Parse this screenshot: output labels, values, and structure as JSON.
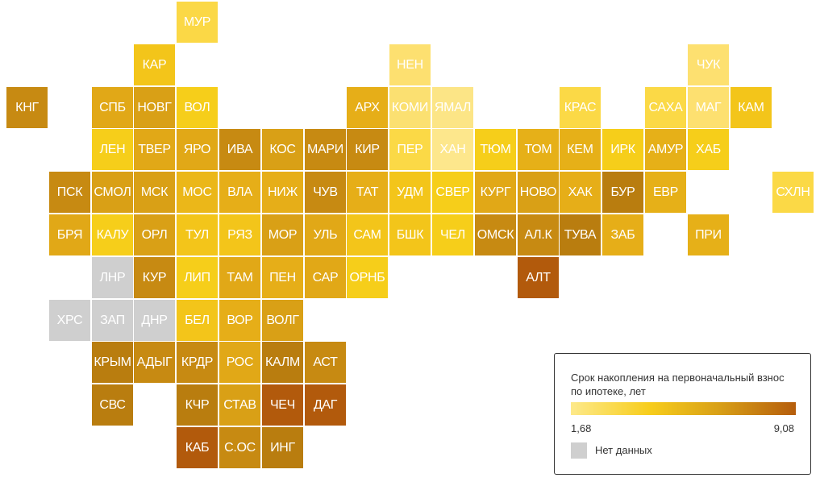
{
  "legend": {
    "title": "Срок накопления на первоначальный взнос по ипотеке, лет",
    "min_label": "1,68",
    "max_label": "9,08",
    "min_value": 1.68,
    "max_value": 9.08,
    "no_data_label": "Нет данных",
    "no_data_color": "#cfcfcf",
    "scale_colors": [
      "#fde98a",
      "#f7cd1c",
      "#d9a117",
      "#b55d0c"
    ]
  },
  "regions": [
    {
      "label": "МУР",
      "col": 4,
      "row": 0,
      "color": "#fbd846"
    },
    {
      "label": "КАР",
      "col": 3,
      "row": 1,
      "color": "#f3c51a"
    },
    {
      "label": "НЕН",
      "col": 9,
      "row": 1,
      "color": "#fde070"
    },
    {
      "label": "ЧУК",
      "col": 16,
      "row": 1,
      "color": "#fde070"
    },
    {
      "label": "КНГ",
      "col": 0,
      "row": 2,
      "color": "#c78a12"
    },
    {
      "label": "СПБ",
      "col": 2,
      "row": 2,
      "color": "#e1a817"
    },
    {
      "label": "НОВГ",
      "col": 3,
      "row": 2,
      "color": "#d9a016"
    },
    {
      "label": "ВОЛ",
      "col": 4,
      "row": 2,
      "color": "#f6ce1a"
    },
    {
      "label": "АРХ",
      "col": 8,
      "row": 2,
      "color": "#e6ae18"
    },
    {
      "label": "КОМИ",
      "col": 9,
      "row": 2,
      "color": "#fbe071"
    },
    {
      "label": "ЯМАЛ",
      "col": 10,
      "row": 2,
      "color": "#fce586"
    },
    {
      "label": "КРАС",
      "col": 13,
      "row": 2,
      "color": "#fbd946"
    },
    {
      "label": "САХА",
      "col": 15,
      "row": 2,
      "color": "#fbd946"
    },
    {
      "label": "МАГ",
      "col": 16,
      "row": 2,
      "color": "#fde070"
    },
    {
      "label": "КАМ",
      "col": 17,
      "row": 2,
      "color": "#f3c51a"
    },
    {
      "label": "ЛЕН",
      "col": 2,
      "row": 3,
      "color": "#f6ce1a"
    },
    {
      "label": "ТВЕР",
      "col": 3,
      "row": 3,
      "color": "#e1a817"
    },
    {
      "label": "ЯРО",
      "col": 4,
      "row": 3,
      "color": "#e1a817"
    },
    {
      "label": "ИВА",
      "col": 5,
      "row": 3,
      "color": "#c78a12"
    },
    {
      "label": "КОС",
      "col": 6,
      "row": 3,
      "color": "#d9a016"
    },
    {
      "label": "МАРИ",
      "col": 7,
      "row": 3,
      "color": "#c78a12"
    },
    {
      "label": "КИР",
      "col": 8,
      "row": 3,
      "color": "#c78a12"
    },
    {
      "label": "ПЕР",
      "col": 9,
      "row": 3,
      "color": "#fbd946"
    },
    {
      "label": "ХАН",
      "col": 10,
      "row": 3,
      "color": "#fde78c"
    },
    {
      "label": "ТЮМ",
      "col": 11,
      "row": 3,
      "color": "#f6ce1a"
    },
    {
      "label": "ТОМ",
      "col": 12,
      "row": 3,
      "color": "#e6b018"
    },
    {
      "label": "КЕМ",
      "col": 13,
      "row": 3,
      "color": "#e6b018"
    },
    {
      "label": "ИРК",
      "col": 14,
      "row": 3,
      "color": "#f6ce1a"
    },
    {
      "label": "АМУР",
      "col": 15,
      "row": 3,
      "color": "#e6b018"
    },
    {
      "label": "ХАБ",
      "col": 16,
      "row": 3,
      "color": "#f6ce1a"
    },
    {
      "label": "ПСК",
      "col": 1,
      "row": 4,
      "color": "#c78a12"
    },
    {
      "label": "СМОЛ",
      "col": 2,
      "row": 4,
      "color": "#d9a016"
    },
    {
      "label": "МСК",
      "col": 3,
      "row": 4,
      "color": "#d9a016"
    },
    {
      "label": "МОС",
      "col": 4,
      "row": 4,
      "color": "#ebb719"
    },
    {
      "label": "ВЛА",
      "col": 5,
      "row": 4,
      "color": "#e6ae18"
    },
    {
      "label": "НИЖ",
      "col": 6,
      "row": 4,
      "color": "#e6ae18"
    },
    {
      "label": "ЧУВ",
      "col": 7,
      "row": 4,
      "color": "#c78a12"
    },
    {
      "label": "ТАТ",
      "col": 8,
      "row": 4,
      "color": "#e6ae18"
    },
    {
      "label": "УДМ",
      "col": 9,
      "row": 4,
      "color": "#f3c51a"
    },
    {
      "label": "СВЕР",
      "col": 10,
      "row": 4,
      "color": "#f6ce1a"
    },
    {
      "label": "КУРГ",
      "col": 11,
      "row": 4,
      "color": "#e1a817"
    },
    {
      "label": "НОВО",
      "col": 12,
      "row": 4,
      "color": "#d9a016"
    },
    {
      "label": "ХАК",
      "col": 13,
      "row": 4,
      "color": "#e6ae18"
    },
    {
      "label": "БУР",
      "col": 14,
      "row": 4,
      "color": "#b97d0f"
    },
    {
      "label": "ЕВР",
      "col": 15,
      "row": 4,
      "color": "#e6b018"
    },
    {
      "label": "СХЛН",
      "col": 18,
      "row": 4,
      "color": "#fbd946"
    },
    {
      "label": "БРЯ",
      "col": 1,
      "row": 5,
      "color": "#e1a817"
    },
    {
      "label": "КАЛУ",
      "col": 2,
      "row": 5,
      "color": "#f6ce1a"
    },
    {
      "label": "ОРЛ",
      "col": 3,
      "row": 5,
      "color": "#d9a016"
    },
    {
      "label": "ТУЛ",
      "col": 4,
      "row": 5,
      "color": "#f3c51a"
    },
    {
      "label": "РЯЗ",
      "col": 5,
      "row": 5,
      "color": "#f3c51a"
    },
    {
      "label": "МОР",
      "col": 6,
      "row": 5,
      "color": "#d9a016"
    },
    {
      "label": "УЛЬ",
      "col": 7,
      "row": 5,
      "color": "#e1a817"
    },
    {
      "label": "САМ",
      "col": 8,
      "row": 5,
      "color": "#f3c51a"
    },
    {
      "label": "БШК",
      "col": 9,
      "row": 5,
      "color": "#f3c51a"
    },
    {
      "label": "ЧЕЛ",
      "col": 10,
      "row": 5,
      "color": "#f6ce1a"
    },
    {
      "label": "ОМСК",
      "col": 11,
      "row": 5,
      "color": "#c78a12"
    },
    {
      "label": "АЛ.К",
      "col": 12,
      "row": 5,
      "color": "#c78a12"
    },
    {
      "label": "ТУВА",
      "col": 13,
      "row": 5,
      "color": "#b97d0f"
    },
    {
      "label": "ЗАБ",
      "col": 14,
      "row": 5,
      "color": "#e6ae18"
    },
    {
      "label": "ПРИ",
      "col": 16,
      "row": 5,
      "color": "#e6b018"
    },
    {
      "label": "ЛНР",
      "col": 2,
      "row": 6,
      "color": "#cfcfcf"
    },
    {
      "label": "КУР",
      "col": 3,
      "row": 6,
      "color": "#c78a12"
    },
    {
      "label": "ЛИП",
      "col": 4,
      "row": 6,
      "color": "#f6ce1a"
    },
    {
      "label": "ТАМ",
      "col": 5,
      "row": 6,
      "color": "#e1a817"
    },
    {
      "label": "ПЕН",
      "col": 6,
      "row": 6,
      "color": "#e6ae18"
    },
    {
      "label": "САР",
      "col": 7,
      "row": 6,
      "color": "#e1a817"
    },
    {
      "label": "ОРНБ",
      "col": 8,
      "row": 6,
      "color": "#f6ce1a"
    },
    {
      "label": "АЛТ",
      "col": 12,
      "row": 6,
      "color": "#b25a0c"
    },
    {
      "label": "ХРС",
      "col": 1,
      "row": 7,
      "color": "#cfcfcf"
    },
    {
      "label": "ЗАП",
      "col": 2,
      "row": 7,
      "color": "#cfcfcf"
    },
    {
      "label": "ДНР",
      "col": 3,
      "row": 7,
      "color": "#cfcfcf"
    },
    {
      "label": "БЕЛ",
      "col": 4,
      "row": 7,
      "color": "#f3c51a"
    },
    {
      "label": "ВОР",
      "col": 5,
      "row": 7,
      "color": "#e6ae18"
    },
    {
      "label": "ВОЛГ",
      "col": 6,
      "row": 7,
      "color": "#d9a016"
    },
    {
      "label": "КРЫМ",
      "col": 2,
      "row": 8,
      "color": "#b97d0f"
    },
    {
      "label": "АДЫГ",
      "col": 3,
      "row": 8,
      "color": "#c78a12"
    },
    {
      "label": "КРДР",
      "col": 4,
      "row": 8,
      "color": "#c78a12"
    },
    {
      "label": "РОС",
      "col": 5,
      "row": 8,
      "color": "#e1a817"
    },
    {
      "label": "КАЛМ",
      "col": 6,
      "row": 8,
      "color": "#b97d0f"
    },
    {
      "label": "АСТ",
      "col": 7,
      "row": 8,
      "color": "#c78a12"
    },
    {
      "label": "СВС",
      "col": 2,
      "row": 9,
      "color": "#b97d0f"
    },
    {
      "label": "КЧР",
      "col": 4,
      "row": 9,
      "color": "#b97d0f"
    },
    {
      "label": "СТАВ",
      "col": 5,
      "row": 9,
      "color": "#d9a016"
    },
    {
      "label": "ЧЕЧ",
      "col": 6,
      "row": 9,
      "color": "#b25a0c"
    },
    {
      "label": "ДАГ",
      "col": 7,
      "row": 9,
      "color": "#b25a0c"
    },
    {
      "label": "КАБ",
      "col": 4,
      "row": 10,
      "color": "#b25a0c"
    },
    {
      "label": "С.ОС",
      "col": 5,
      "row": 10,
      "color": "#c78a12"
    },
    {
      "label": "ИНГ",
      "col": 6,
      "row": 10,
      "color": "#b97d0f"
    }
  ]
}
